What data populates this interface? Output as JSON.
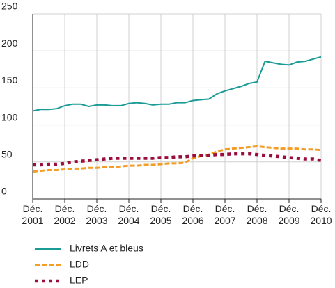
{
  "chart_data": {
    "type": "line",
    "categories": [
      "Déc. 2001",
      null,
      null,
      null,
      "Déc. 2002",
      null,
      null,
      null,
      "Déc. 2003",
      null,
      null,
      null,
      "Déc. 2004",
      null,
      null,
      null,
      "Déc. 2005",
      null,
      null,
      null,
      "Déc. 2006",
      null,
      null,
      null,
      "Déc. 2007",
      null,
      null,
      null,
      "Déc. 2008",
      null,
      null,
      null,
      "Déc. 2009",
      null,
      null,
      null,
      "Déc. 2010"
    ],
    "series": [
      {
        "name": "Livrets A et bleus",
        "color": "#1a9b96",
        "style": "solid",
        "values": [
          119,
          121,
          121,
          122,
          126,
          128,
          128,
          125,
          127,
          127,
          126,
          126,
          129,
          130,
          129,
          127,
          128,
          128,
          130,
          130,
          133,
          134,
          135,
          142,
          146,
          149,
          152,
          156,
          158,
          186,
          184,
          182,
          181,
          185,
          186,
          189,
          192
        ]
      },
      {
        "name": "LDD",
        "color": "#f39c26",
        "style": "dashed",
        "values": [
          37,
          38,
          39,
          39,
          40,
          41,
          41,
          42,
          42,
          43,
          43,
          44,
          45,
          45,
          46,
          46,
          47,
          48,
          48,
          49,
          55,
          58,
          60,
          64,
          67,
          68,
          69,
          70,
          71,
          70,
          69,
          68,
          68,
          68,
          67,
          67,
          66
        ]
      },
      {
        "name": "LEP",
        "color": "#9b0e3c",
        "style": "dotted",
        "values": [
          46,
          46,
          47,
          47,
          48,
          50,
          51,
          52,
          53,
          54,
          55,
          55,
          55,
          55,
          55,
          55,
          56,
          56,
          57,
          57,
          58,
          59,
          59,
          60,
          60,
          61,
          61,
          61,
          60,
          59,
          58,
          57,
          56,
          55,
          54,
          54,
          52
        ]
      }
    ],
    "ylim": [
      0,
      250
    ],
    "yticks": [
      0,
      50,
      100,
      150,
      200,
      250
    ],
    "grid": true
  }
}
